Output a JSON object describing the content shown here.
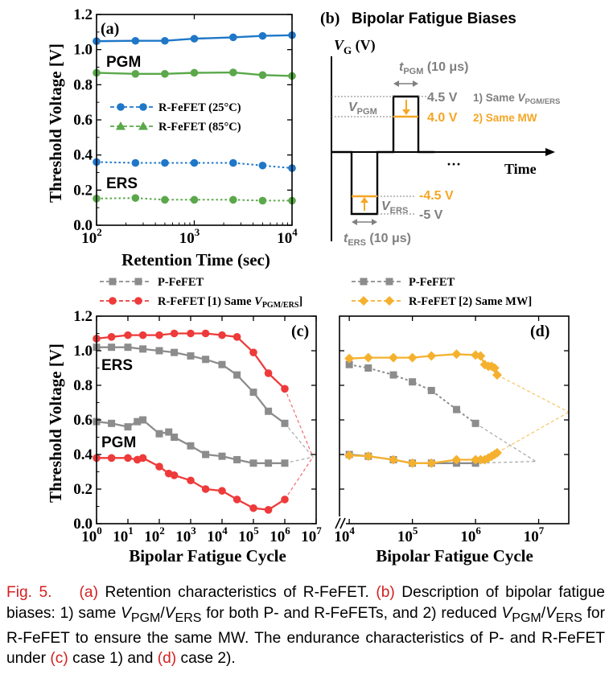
{
  "chart_data": [
    {
      "panel": "(a)",
      "type": "line",
      "xscale": "log",
      "xlabel": "Retention Time (sec)",
      "ylabel": "Threshold Voltage [V]",
      "xlim": [
        100,
        10000
      ],
      "ylim": [
        0.0,
        1.2
      ],
      "xticks": [
        {
          "v": 100,
          "b": "10",
          "e": "2"
        },
        {
          "v": 1000,
          "b": "10",
          "e": "3"
        },
        {
          "v": 10000,
          "b": "10",
          "e": "4"
        }
      ],
      "yticks": [
        "0.0",
        "0.2",
        "0.4",
        "0.6",
        "0.8",
        "1.0",
        "1.2"
      ],
      "annotations": [
        "PGM",
        "ERS"
      ],
      "legend": [
        {
          "label": "R-FeFET (25°C)",
          "marker": "circle",
          "color": "#1f77c8"
        },
        {
          "label": "R-FeFET (85°C)",
          "marker": "triangle",
          "color": "#5aa84a"
        }
      ],
      "series": [
        {
          "state": "PGM",
          "temp": "25C",
          "color": "#1f77c8",
          "marker": "circle",
          "dash": "solid",
          "x": [
            100,
            250,
            500,
            1000,
            2500,
            5000,
            10000
          ],
          "y": [
            1.048,
            1.05,
            1.05,
            1.062,
            1.07,
            1.078,
            1.082
          ]
        },
        {
          "state": "PGM",
          "temp": "85C",
          "color": "#5aa84a",
          "marker": "circle",
          "dash": "solid",
          "x": [
            100,
            250,
            500,
            1000,
            2500,
            5000,
            10000
          ],
          "y": [
            0.868,
            0.862,
            0.862,
            0.868,
            0.87,
            0.855,
            0.85
          ]
        },
        {
          "state": "ERS",
          "temp": "25C",
          "color": "#1f77c8",
          "marker": "circle",
          "dash": "dotted",
          "x": [
            100,
            250,
            500,
            1000,
            2500,
            5000,
            10000
          ],
          "y": [
            0.36,
            0.355,
            0.355,
            0.355,
            0.355,
            0.34,
            0.325
          ]
        },
        {
          "state": "ERS",
          "temp": "85C",
          "color": "#5aa84a",
          "marker": "circle",
          "dash": "dotted",
          "x": [
            100,
            250,
            500,
            1000,
            2500,
            5000,
            10000
          ],
          "y": [
            0.152,
            0.155,
            0.145,
            0.145,
            0.145,
            0.14,
            0.14
          ]
        }
      ]
    },
    {
      "panel": "(c)",
      "type": "line",
      "xscale": "log",
      "xlabel": "Bipolar Fatigue Cycle",
      "ylabel": "Threshold Voltage [V]",
      "xlim": [
        1,
        10000000
      ],
      "ylim": [
        0.0,
        1.2
      ],
      "xticks": [
        {
          "v": 1,
          "b": "10",
          "e": "0"
        },
        {
          "v": 10,
          "b": "10",
          "e": "1"
        },
        {
          "v": 100,
          "b": "10",
          "e": "2"
        },
        {
          "v": 1000,
          "b": "10",
          "e": "3"
        },
        {
          "v": 10000,
          "b": "10",
          "e": "4"
        },
        {
          "v": 100000,
          "b": "10",
          "e": "5"
        },
        {
          "v": 1000000,
          "b": "10",
          "e": "6"
        },
        {
          "v": 10000000,
          "b": "10",
          "e": "7"
        }
      ],
      "yticks": [
        "0.0",
        "0.2",
        "0.4",
        "0.6",
        "0.8",
        "1.0",
        "1.2"
      ],
      "annotations": [
        "ERS",
        "PGM"
      ],
      "legend": [
        {
          "label": "P-FeFET",
          "marker": "square",
          "color": "#8c8c8c"
        },
        {
          "label": "R-FeFET [1) Same ",
          "sub_label": "V",
          "sub": "PGM/ERS",
          "tail": "]",
          "marker": "circle",
          "color": "#ee3a3a"
        }
      ],
      "series": [
        {
          "name": "P-FeFET",
          "state": "ERS",
          "color": "#8c8c8c",
          "marker": "square",
          "x": [
            1,
            3,
            10,
            30,
            100,
            300,
            1000,
            3000,
            10000,
            30000,
            100000,
            300000,
            1000000
          ],
          "y": [
            1.02,
            1.02,
            1.02,
            1.01,
            1.0,
            0.99,
            0.97,
            0.95,
            0.92,
            0.86,
            0.76,
            0.65,
            0.58
          ]
        },
        {
          "name": "P-FeFET",
          "state": "PGM",
          "color": "#8c8c8c",
          "marker": "square",
          "x": [
            1,
            3,
            10,
            20,
            30,
            100,
            200,
            300,
            1000,
            3000,
            10000,
            30000,
            100000,
            300000,
            1000000
          ],
          "y": [
            0.59,
            0.58,
            0.56,
            0.59,
            0.6,
            0.52,
            0.53,
            0.5,
            0.45,
            0.4,
            0.39,
            0.37,
            0.35,
            0.35,
            0.35
          ]
        },
        {
          "name": "R-FeFET",
          "state": "ERS",
          "color": "#ee3a3a",
          "marker": "circle",
          "x": [
            1,
            3,
            10,
            30,
            100,
            300,
            1000,
            3000,
            10000,
            30000,
            100000,
            300000,
            1000000
          ],
          "y": [
            1.07,
            1.08,
            1.09,
            1.09,
            1.09,
            1.1,
            1.1,
            1.1,
            1.09,
            1.08,
            0.99,
            0.87,
            0.78
          ]
        },
        {
          "name": "R-FeFET",
          "state": "PGM",
          "color": "#ee3a3a",
          "marker": "circle",
          "x": [
            1,
            3,
            10,
            20,
            30,
            100,
            200,
            300,
            1000,
            3000,
            10000,
            30000,
            100000,
            300000,
            1000000
          ],
          "y": [
            0.38,
            0.38,
            0.38,
            0.37,
            0.38,
            0.33,
            0.29,
            0.28,
            0.25,
            0.2,
            0.19,
            0.14,
            0.09,
            0.08,
            0.14
          ]
        }
      ]
    },
    {
      "panel": "(d)",
      "type": "line",
      "xscale": "log",
      "xlabel": "Bipolar Fatigue Cycle",
      "xlim": [
        7000,
        30000000
      ],
      "ylim": [
        0.0,
        1.2
      ],
      "xticks": [
        {
          "v": 10000,
          "b": "10",
          "e": "4"
        },
        {
          "v": 100000,
          "b": "10",
          "e": "5"
        },
        {
          "v": 1000000,
          "b": "10",
          "e": "6"
        },
        {
          "v": 10000000,
          "b": "10",
          "e": "7"
        }
      ],
      "legend": [
        {
          "label": "P-FeFET",
          "marker": "square",
          "color": "#8c8c8c"
        },
        {
          "label": "R-FeFET [2) Same MW]",
          "marker": "diamond",
          "color": "#f5b12e"
        }
      ],
      "series": [
        {
          "name": "P-FeFET",
          "state": "ERS",
          "color": "#8c8c8c",
          "marker": "square",
          "x": [
            10000,
            20000,
            50000,
            100000,
            200000,
            500000,
            1000000
          ],
          "y": [
            0.92,
            0.9,
            0.86,
            0.82,
            0.77,
            0.66,
            0.58
          ]
        },
        {
          "name": "P-FeFET",
          "state": "PGM",
          "color": "#8c8c8c",
          "marker": "square",
          "x": [
            10000,
            20000,
            50000,
            100000,
            200000,
            500000,
            1000000
          ],
          "y": [
            0.4,
            0.39,
            0.37,
            0.35,
            0.35,
            0.35,
            0.35
          ]
        },
        {
          "name": "R-FeFET",
          "state": "ERS",
          "color": "#f5b12e",
          "marker": "diamond",
          "x": [
            10000,
            20000,
            50000,
            100000,
            200000,
            500000,
            1000000,
            1200000,
            1400000,
            1600000,
            1800000,
            2000000,
            2200000
          ],
          "y": [
            0.955,
            0.96,
            0.96,
            0.96,
            0.97,
            0.98,
            0.975,
            0.97,
            0.92,
            0.91,
            0.91,
            0.9,
            0.86
          ]
        },
        {
          "name": "R-FeFET",
          "state": "PGM",
          "color": "#f5b12e",
          "marker": "diamond",
          "x": [
            10000,
            20000,
            50000,
            100000,
            200000,
            500000,
            1000000,
            1200000,
            1400000,
            1600000,
            1800000,
            2000000,
            2200000
          ],
          "y": [
            0.395,
            0.39,
            0.37,
            0.35,
            0.35,
            0.37,
            0.37,
            0.37,
            0.37,
            0.38,
            0.39,
            0.4,
            0.41
          ]
        }
      ]
    }
  ],
  "panel_b": {
    "label": "(b)",
    "title": "Bipolar Fatigue Biases",
    "y_axis_label": "V",
    "y_axis_sub": "G",
    "y_axis_unit": " (V)",
    "x_axis_label": "Time",
    "ellipsis": "···",
    "t_pgm": {
      "t": "t",
      "sub": "PGM",
      "value": " (10 μs)"
    },
    "t_ers": {
      "t": "t",
      "sub": "ERS",
      "value": " (10 μs)"
    },
    "v_pgm": {
      "v": "V",
      "sub": "PGM"
    },
    "v_ers": {
      "v": "V",
      "sub": "ERS"
    },
    "level_pgm_1": "4.5 V",
    "level_pgm_2": "4.0 V",
    "level_ers_1": "-5 V",
    "level_ers_2": "-4.5 V",
    "case_1": {
      "prefix": "1) Same ",
      "v": "V",
      "sub": "PGM/ERS"
    },
    "case_2": "2) Same MW",
    "gray": "#7f7f7f",
    "orange": "#f5a623"
  },
  "caption": {
    "fig": "Fig. 5.",
    "a": "(a)",
    "a_text": " Retention characteristics of R-FeFET. ",
    "b": "(b)",
    "b_text_1": " Description of bipolar fatigue biases: 1) same ",
    "v1": "V",
    "s1": "PGM",
    "slash": "/",
    "v2": "V",
    "s2": "ERS",
    "b_text_2": " for both P- and R-FeFETs, and 2) reduced ",
    "v3": "V",
    "s3": "PGM",
    "slash2": "/",
    "v4": "V",
    "s4": "ERS",
    "b_text_3": " for R-FeFET to ensure the same MW. The endurance characteristics of P- and R-FeFET under ",
    "c": "(c)",
    "c_text": " case 1) and ",
    "d": "(d)",
    "d_text": " case 2)."
  }
}
